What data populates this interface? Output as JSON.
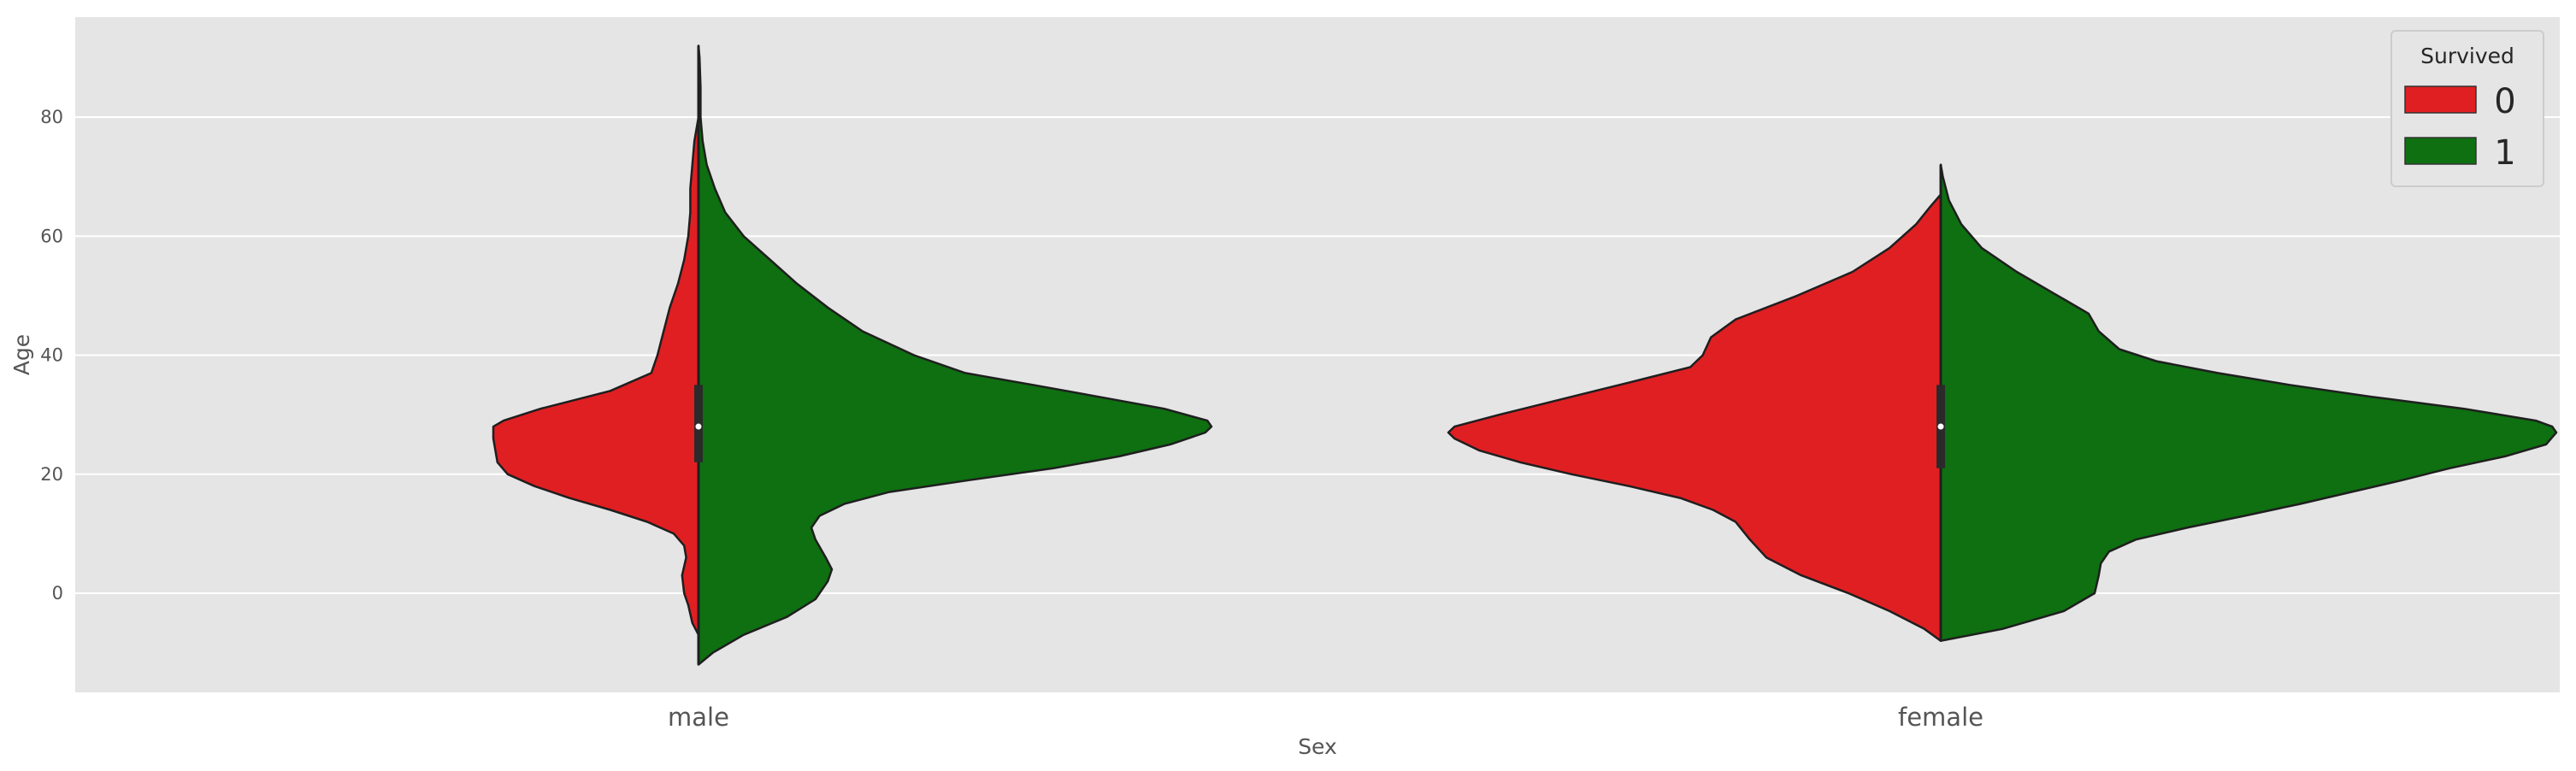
{
  "chart_data": {
    "type": "violin",
    "title": "",
    "xlabel": "Sex",
    "ylabel": "Age",
    "categories": [
      "male",
      "female"
    ],
    "ylim": [
      -17,
      97
    ],
    "yticks": [
      0,
      20,
      40,
      60,
      80
    ],
    "split": true,
    "grid": true,
    "background": "#E5E5E5",
    "legend": {
      "title": "Survived",
      "placement": "top-right"
    },
    "series": [
      {
        "name": "0",
        "side": "left",
        "color": "#E01F22"
      },
      {
        "name": "1",
        "side": "right",
        "color": "#0E7010"
      }
    ],
    "violins": [
      {
        "category": "male",
        "quartiles": [
          22,
          28,
          35
        ],
        "median": 28,
        "halves": {
          "0": {
            "range": [
              -7,
              80
            ],
            "profile": [
              [
                -7,
                0.0
              ],
              [
                -5,
                0.03
              ],
              [
                -2,
                0.05
              ],
              [
                0,
                0.07
              ],
              [
                3,
                0.08
              ],
              [
                6,
                0.06
              ],
              [
                8,
                0.07
              ],
              [
                10,
                0.12
              ],
              [
                12,
                0.25
              ],
              [
                14,
                0.43
              ],
              [
                16,
                0.63
              ],
              [
                18,
                0.8
              ],
              [
                20,
                0.93
              ],
              [
                22,
                0.98
              ],
              [
                24,
                0.99
              ],
              [
                26,
                1.0
              ],
              [
                28,
                1.0
              ],
              [
                29,
                0.95
              ],
              [
                31,
                0.77
              ],
              [
                34,
                0.43
              ],
              [
                37,
                0.23
              ],
              [
                40,
                0.2
              ],
              [
                44,
                0.17
              ],
              [
                48,
                0.14
              ],
              [
                52,
                0.1
              ],
              [
                56,
                0.07
              ],
              [
                60,
                0.05
              ],
              [
                64,
                0.04
              ],
              [
                68,
                0.04
              ],
              [
                72,
                0.03
              ],
              [
                76,
                0.02
              ],
              [
                80,
                0.0
              ]
            ]
          },
          "1": {
            "range": [
              -12,
              92
            ],
            "profile": [
              [
                -12,
                0.0
              ],
              [
                -10,
                0.07
              ],
              [
                -7,
                0.22
              ],
              [
                -4,
                0.43
              ],
              [
                -1,
                0.57
              ],
              [
                2,
                0.63
              ],
              [
                4,
                0.65
              ],
              [
                6,
                0.62
              ],
              [
                9,
                0.57
              ],
              [
                11,
                0.55
              ],
              [
                13,
                0.59
              ],
              [
                15,
                0.71
              ],
              [
                17,
                0.93
              ],
              [
                19,
                1.32
              ],
              [
                21,
                1.73
              ],
              [
                23,
                2.05
              ],
              [
                25,
                2.3
              ],
              [
                27,
                2.47
              ],
              [
                28,
                2.5
              ],
              [
                29,
                2.48
              ],
              [
                31,
                2.27
              ],
              [
                33,
                1.95
              ],
              [
                35,
                1.63
              ],
              [
                37,
                1.3
              ],
              [
                40,
                1.05
              ],
              [
                44,
                0.8
              ],
              [
                48,
                0.63
              ],
              [
                52,
                0.48
              ],
              [
                56,
                0.35
              ],
              [
                60,
                0.22
              ],
              [
                64,
                0.13
              ],
              [
                68,
                0.08
              ],
              [
                72,
                0.04
              ],
              [
                76,
                0.02
              ],
              [
                80,
                0.01
              ],
              [
                85,
                0.01
              ],
              [
                90,
                0.005
              ],
              [
                92,
                0.0
              ]
            ]
          }
        }
      },
      {
        "category": "female",
        "quartiles": [
          21,
          28,
          35
        ],
        "median": 28,
        "halves": {
          "0": {
            "range": [
              -8,
              67
            ],
            "profile": [
              [
                -8,
                0.0
              ],
              [
                -6,
                0.08
              ],
              [
                -3,
                0.25
              ],
              [
                0,
                0.45
              ],
              [
                3,
                0.68
              ],
              [
                6,
                0.85
              ],
              [
                9,
                0.93
              ],
              [
                12,
                1.0
              ],
              [
                14,
                1.11
              ],
              [
                16,
                1.27
              ],
              [
                18,
                1.52
              ],
              [
                20,
                1.8
              ],
              [
                22,
                2.05
              ],
              [
                24,
                2.25
              ],
              [
                26,
                2.37
              ],
              [
                27,
                2.4
              ],
              [
                28,
                2.37
              ],
              [
                30,
                2.15
              ],
              [
                33,
                1.8
              ],
              [
                36,
                1.45
              ],
              [
                38,
                1.22
              ],
              [
                40,
                1.16
              ],
              [
                43,
                1.12
              ],
              [
                46,
                1.0
              ],
              [
                50,
                0.7
              ],
              [
                54,
                0.43
              ],
              [
                58,
                0.25
              ],
              [
                62,
                0.12
              ],
              [
                65,
                0.05
              ],
              [
                67,
                0.0
              ]
            ]
          },
          "1": {
            "range": [
              -8,
              72
            ],
            "profile": [
              [
                -8,
                0.0
              ],
              [
                -6,
                0.3
              ],
              [
                -3,
                0.6
              ],
              [
                0,
                0.75
              ],
              [
                3,
                0.77
              ],
              [
                5,
                0.78
              ],
              [
                7,
                0.82
              ],
              [
                9,
                0.95
              ],
              [
                11,
                1.2
              ],
              [
                13,
                1.48
              ],
              [
                15,
                1.75
              ],
              [
                17,
                2.0
              ],
              [
                19,
                2.25
              ],
              [
                21,
                2.48
              ],
              [
                23,
                2.75
              ],
              [
                25,
                2.95
              ],
              [
                27,
                3.0
              ],
              [
                28,
                2.98
              ],
              [
                29,
                2.9
              ],
              [
                31,
                2.55
              ],
              [
                33,
                2.1
              ],
              [
                35,
                1.7
              ],
              [
                37,
                1.35
              ],
              [
                39,
                1.05
              ],
              [
                41,
                0.87
              ],
              [
                44,
                0.77
              ],
              [
                47,
                0.72
              ],
              [
                50,
                0.57
              ],
              [
                54,
                0.37
              ],
              [
                58,
                0.2
              ],
              [
                62,
                0.1
              ],
              [
                66,
                0.04
              ],
              [
                70,
                0.01
              ],
              [
                72,
                0.0
              ]
            ]
          }
        }
      }
    ]
  }
}
